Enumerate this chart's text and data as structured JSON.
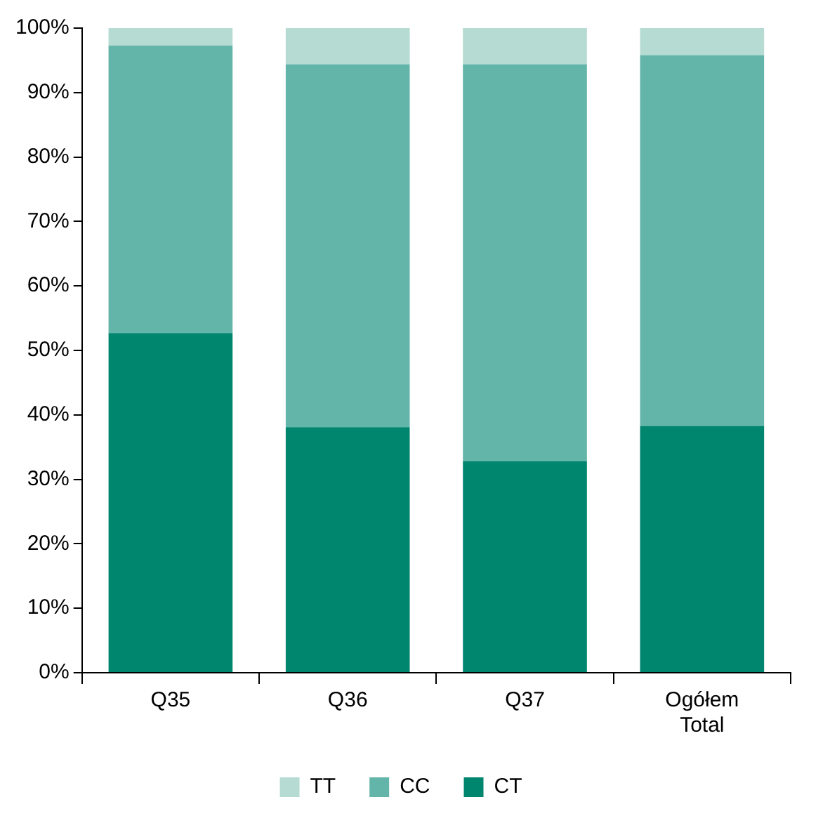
{
  "chart_data": {
    "type": "bar",
    "stacked": true,
    "categories": [
      "Q35",
      "Q36",
      "Q37",
      "Ogółem\nTotal"
    ],
    "series": [
      {
        "name": "CT",
        "color": "#00856f",
        "values": [
          52.7,
          38.1,
          32.8,
          38.3
        ]
      },
      {
        "name": "CC",
        "color": "#63b5a9",
        "values": [
          44.6,
          56.3,
          61.6,
          57.5
        ]
      },
      {
        "name": "TT",
        "color": "#b5dbd3",
        "values": [
          2.7,
          5.6,
          5.6,
          4.2
        ]
      }
    ],
    "ylim": [
      0,
      100
    ],
    "yticks": [
      {
        "value": 0,
        "label": "0%"
      },
      {
        "value": 10,
        "label": "10%"
      },
      {
        "value": 20,
        "label": "20%"
      },
      {
        "value": 30,
        "label": "30%"
      },
      {
        "value": 40,
        "label": "40%"
      },
      {
        "value": 50,
        "label": "50%"
      },
      {
        "value": 60,
        "label": "60%"
      },
      {
        "value": 70,
        "label": "70%"
      },
      {
        "value": 80,
        "label": "80%"
      },
      {
        "value": 90,
        "label": "90%"
      },
      {
        "value": 100,
        "label": "100%"
      }
    ],
    "grid": false,
    "legend": "bottom"
  }
}
